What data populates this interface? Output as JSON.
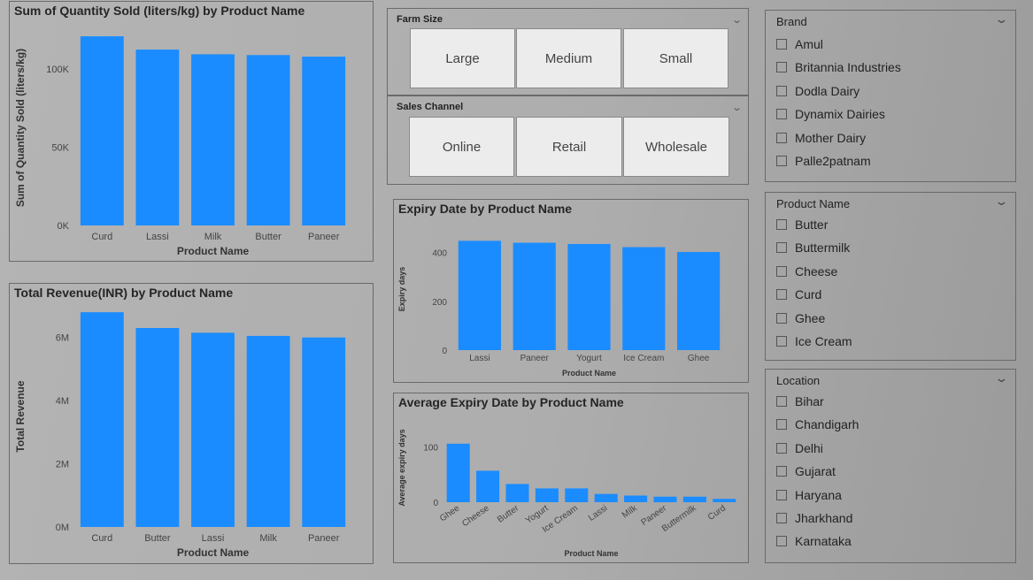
{
  "charts": {
    "qty": {
      "title": "Sum of Quantity Sold (liters/kg) by Product Name",
      "chart_data": {
        "type": "bar",
        "title": "Sum of Quantity Sold (liters/kg) by Product Name",
        "xlabel": "Product Name",
        "ylabel": "Sum of Quantity Sold (liters/kg)",
        "categories": [
          "Curd",
          "Lassi",
          "Milk",
          "Butter",
          "Paneer"
        ],
        "values": [
          121000,
          112500,
          109500,
          109000,
          108000
        ],
        "ylim": [
          0,
          125000
        ],
        "yticks": [
          0,
          50000,
          100000
        ],
        "ytick_labels": [
          "0K",
          "50K",
          "100K"
        ],
        "grid": false,
        "color": "#1a8cff"
      }
    },
    "revenue": {
      "title": "Total Revenue(INR) by Product Name",
      "chart_data": {
        "type": "bar",
        "title": "Total Revenue(INR) by Product Name",
        "xlabel": "Product Name",
        "ylabel": "Total Revenue",
        "categories": [
          "Curd",
          "Butter",
          "Lassi",
          "Milk",
          "Paneer"
        ],
        "values": [
          6800000,
          6300000,
          6150000,
          6050000,
          6000000
        ],
        "ylim": [
          0,
          7000000
        ],
        "yticks": [
          0,
          2000000,
          4000000,
          6000000
        ],
        "ytick_labels": [
          "0M",
          "2M",
          "4M",
          "6M"
        ],
        "grid": false,
        "color": "#1a8cff"
      }
    },
    "expiry": {
      "title": "Expiry Date by Product Name",
      "chart_data": {
        "type": "bar",
        "title": "Expiry Date by Product Name",
        "xlabel": "Product Name",
        "ylabel": "Expiry days",
        "categories": [
          "Lassi",
          "Paneer",
          "Yogurt",
          "Ice Cream",
          "Ghee"
        ],
        "values": [
          448,
          440,
          435,
          422,
          402
        ],
        "ylim": [
          0,
          500
        ],
        "yticks": [
          0,
          200,
          400
        ],
        "ytick_labels": [
          "0",
          "200",
          "400"
        ],
        "grid": false,
        "color": "#1a8cff"
      }
    },
    "avg_expiry": {
      "title": "Average Expiry Date by Product Name",
      "chart_data": {
        "type": "bar",
        "title": "Average Expiry Date by Product Name",
        "xlabel": "Product Name",
        "ylabel": "Average expiry days",
        "categories": [
          "Ghee",
          "Cheese",
          "Butter",
          "Yogurt",
          "Ice Cream",
          "Lassi",
          "Milk",
          "Paneer",
          "Buttermilk",
          "Curd"
        ],
        "values": [
          106,
          57,
          33,
          25,
          25,
          15,
          12,
          10,
          10,
          6
        ],
        "ylim": [
          0,
          125
        ],
        "yticks": [
          0,
          100
        ],
        "ytick_labels": [
          "0",
          "100"
        ],
        "grid": false,
        "color": "#1a8cff"
      }
    }
  },
  "slicers": {
    "farm_size": {
      "title": "Farm Size",
      "options": [
        "Large",
        "Medium",
        "Small"
      ]
    },
    "sales_channel": {
      "title": "Sales Channel",
      "options": [
        "Online",
        "Retail",
        "Wholesale"
      ]
    },
    "brand": {
      "title": "Brand",
      "items": [
        "Amul",
        "Britannia Industries",
        "Dodla Dairy",
        "Dynamix Dairies",
        "Mother Dairy",
        "Palle2patnam"
      ]
    },
    "product": {
      "title": "Product Name",
      "items": [
        "Butter",
        "Buttermilk",
        "Cheese",
        "Curd",
        "Ghee",
        "Ice Cream"
      ]
    },
    "location": {
      "title": "Location",
      "items": [
        "Bihar",
        "Chandigarh",
        "Delhi",
        "Gujarat",
        "Haryana",
        "Jharkhand",
        "Karnataka"
      ]
    }
  },
  "icons": {
    "chevron": "chevron-down-icon",
    "checkbox": "checkbox-empty"
  },
  "colors": {
    "bar": "#1a8cff",
    "tile_bg": "#ececec"
  }
}
